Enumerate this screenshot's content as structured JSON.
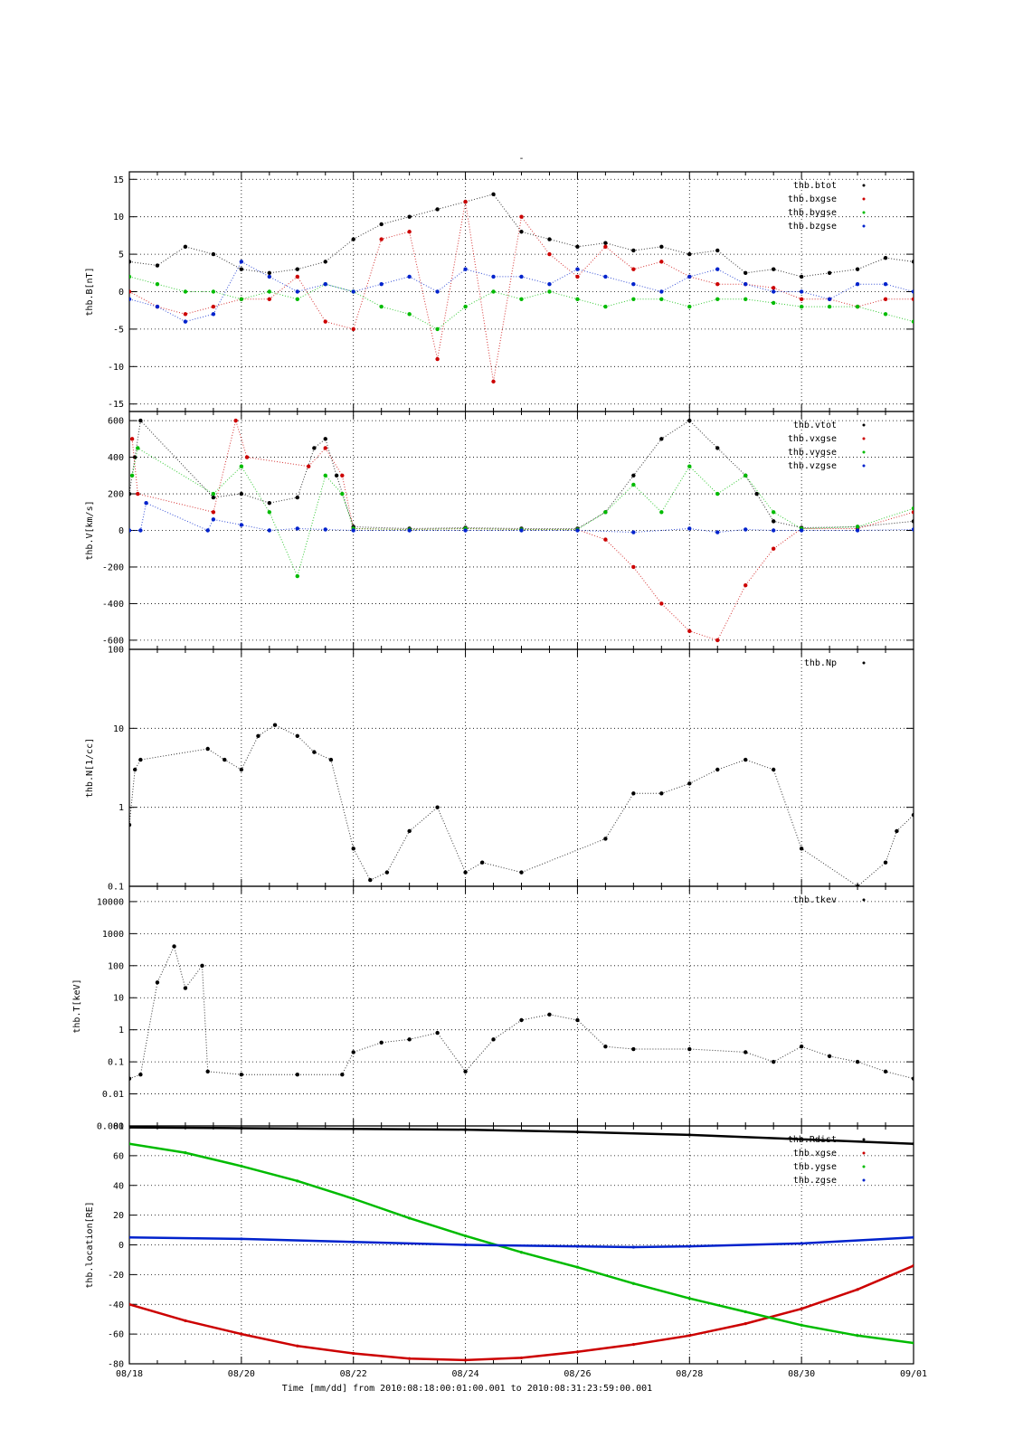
{
  "chart_data": [
    {
      "type": "scatter",
      "title": "-",
      "ylabel": "thb.B[nT]",
      "ylim": [
        -16,
        16
      ],
      "yticks": [
        15,
        10,
        5,
        0,
        -5,
        -10,
        -15
      ],
      "ytick_labels": [
        "15",
        "10",
        "5",
        "0",
        "-5",
        "-10",
        "-15"
      ],
      "series": [
        {
          "name": "thb.btot",
          "color": "#000000",
          "x": [
            0,
            0.5,
            1,
            1.5,
            2,
            2.5,
            3,
            3.5,
            4,
            4.5,
            5,
            5.5,
            6,
            6.5,
            7,
            7.5,
            8,
            8.5,
            9,
            9.5,
            10,
            10.5,
            11,
            11.5,
            12,
            12.5,
            13,
            13.5,
            14
          ],
          "y": [
            4,
            3.5,
            6,
            5,
            3,
            2.5,
            3,
            4,
            7,
            9,
            10,
            11,
            12,
            13,
            8,
            7,
            6,
            6.5,
            5.5,
            6,
            5,
            5.5,
            2.5,
            3,
            2,
            2.5,
            3,
            4.5,
            4
          ]
        },
        {
          "name": "thb.bxgse",
          "color": "#cc0000",
          "x": [
            0,
            0.5,
            1,
            1.5,
            2,
            2.5,
            3,
            3.5,
            4,
            4.5,
            5,
            5.5,
            6,
            6.5,
            7,
            7.5,
            8,
            8.5,
            9,
            9.5,
            10,
            10.5,
            11,
            11.5,
            12,
            12.5,
            13,
            13.5,
            14
          ],
          "y": [
            0,
            -2,
            -3,
            -2,
            -1,
            -1,
            2,
            -4,
            -5,
            7,
            8,
            -9,
            12,
            -12,
            10,
            5,
            2,
            6,
            3,
            4,
            2,
            1,
            1,
            0.5,
            -1,
            -1,
            -2,
            -1,
            -1
          ]
        },
        {
          "name": "thb.bygse",
          "color": "#00bb00",
          "x": [
            0,
            0.5,
            1,
            1.5,
            2,
            2.5,
            3,
            3.5,
            4,
            4.5,
            5,
            5.5,
            6,
            6.5,
            7,
            7.5,
            8,
            8.5,
            9,
            9.5,
            10,
            10.5,
            11,
            11.5,
            12,
            12.5,
            13,
            13.5,
            14
          ],
          "y": [
            2,
            1,
            0,
            0,
            -1,
            0,
            -1,
            1,
            0,
            -2,
            -3,
            -5,
            -2,
            0,
            -1,
            0,
            -1,
            -2,
            -1,
            -1,
            -2,
            -1,
            -1,
            -1.5,
            -2,
            -2,
            -2,
            -3,
            -4
          ]
        },
        {
          "name": "thb.bzgse",
          "color": "#0022cc",
          "x": [
            0,
            0.5,
            1,
            1.5,
            2,
            2.5,
            3,
            3.5,
            4,
            4.5,
            5,
            5.5,
            6,
            6.5,
            7,
            7.5,
            8,
            8.5,
            9,
            9.5,
            10,
            10.5,
            11,
            11.5,
            12,
            12.5,
            13,
            13.5,
            14
          ],
          "y": [
            -1,
            -2,
            -4,
            -3,
            4,
            2,
            0,
            1,
            0,
            1,
            2,
            0,
            3,
            2,
            2,
            1,
            3,
            2,
            1,
            0,
            2,
            3,
            1,
            0,
            0,
            -1,
            1,
            1,
            0
          ]
        }
      ]
    },
    {
      "type": "scatter",
      "ylabel": "thb.V[km/s]",
      "ylim": [
        -650,
        650
      ],
      "yticks": [
        600,
        400,
        200,
        0,
        -200,
        -400,
        -600
      ],
      "ytick_labels": [
        "600",
        "400",
        "200",
        "0",
        "-200",
        "-400",
        "-600"
      ],
      "series": [
        {
          "name": "thb.vtot",
          "color": "#000000",
          "x": [
            0,
            0.1,
            0.2,
            1.5,
            2,
            2.5,
            3,
            3.3,
            3.5,
            3.7,
            4,
            5,
            6,
            7,
            8,
            8.5,
            9,
            9.5,
            10,
            10.5,
            11,
            11.2,
            11.5,
            12,
            13,
            14
          ],
          "y": [
            200,
            400,
            600,
            180,
            200,
            150,
            180,
            450,
            500,
            300,
            20,
            10,
            15,
            10,
            10,
            100,
            300,
            500,
            600,
            450,
            300,
            200,
            50,
            15,
            20,
            50
          ]
        },
        {
          "name": "thb.vxgse",
          "color": "#cc0000",
          "x": [
            0.05,
            0.15,
            1.5,
            1.9,
            2.1,
            3.2,
            3.5,
            3.8,
            4,
            5,
            6,
            7,
            8,
            8.5,
            9,
            9.5,
            10,
            10.5,
            11,
            11.5,
            12,
            13,
            14
          ],
          "y": [
            500,
            200,
            100,
            600,
            400,
            350,
            450,
            300,
            10,
            5,
            10,
            5,
            5,
            -50,
            -200,
            -400,
            -550,
            -600,
            -300,
            -100,
            10,
            10,
            100
          ]
        },
        {
          "name": "thb.vygse",
          "color": "#00bb00",
          "x": [
            0.05,
            0.15,
            1.5,
            2,
            2.5,
            3,
            3.5,
            3.8,
            4,
            5,
            6,
            7,
            8,
            8.5,
            9,
            9.5,
            10,
            10.5,
            11,
            11.5,
            12,
            13,
            14
          ],
          "y": [
            300,
            450,
            200,
            350,
            100,
            -250,
            300,
            200,
            10,
            5,
            10,
            5,
            5,
            100,
            250,
            100,
            350,
            200,
            300,
            100,
            10,
            20,
            120
          ]
        },
        {
          "name": "thb.vzgse",
          "color": "#0022cc",
          "x": [
            0,
            0.2,
            0.3,
            1.4,
            1.5,
            2,
            2.5,
            3,
            3.5,
            4,
            5,
            6,
            7,
            8,
            9,
            10,
            10.5,
            11,
            11.5,
            12,
            13,
            14
          ],
          "y": [
            0,
            0,
            150,
            0,
            60,
            30,
            0,
            10,
            5,
            0,
            0,
            0,
            0,
            0,
            -10,
            10,
            -10,
            5,
            0,
            0,
            0,
            5
          ]
        }
      ]
    },
    {
      "type": "scatter",
      "ylabel": "thb.N[1/cc]",
      "yscale": "log",
      "ylim": [
        0.1,
        100
      ],
      "yticks": [
        100,
        10,
        1,
        0.1
      ],
      "ytick_labels": [
        "100",
        "10",
        "1",
        "0.1"
      ],
      "series": [
        {
          "name": "thb.Np",
          "color": "#000000",
          "x": [
            0,
            0.1,
            0.2,
            1.4,
            1.7,
            2,
            2.3,
            2.6,
            3,
            3.3,
            3.6,
            4,
            4.3,
            4.6,
            5,
            5.5,
            6,
            6.3,
            7,
            8.5,
            9,
            9.5,
            10,
            10.5,
            11,
            11.5,
            12,
            13,
            13.5,
            13.7,
            14
          ],
          "y": [
            0.6,
            3,
            4,
            5.5,
            4,
            3,
            8,
            11,
            8,
            5,
            4,
            0.3,
            0.12,
            0.15,
            0.5,
            1,
            0.15,
            0.2,
            0.15,
            0.4,
            1.5,
            1.5,
            2,
            3,
            4,
            3,
            0.3,
            0.1,
            0.2,
            0.5,
            0.8
          ]
        }
      ]
    },
    {
      "type": "scatter",
      "ylabel": "thb.T[keV]",
      "yscale": "log",
      "ylim": [
        0.001,
        30000
      ],
      "yticks": [
        10000,
        1000,
        100,
        10,
        1,
        0.1,
        0.01,
        0.001
      ],
      "ytick_labels": [
        "10000",
        "1000",
        "100",
        "10",
        "1",
        "0.1",
        "0.01",
        "0.001"
      ],
      "series": [
        {
          "name": "thb.tkev",
          "color": "#000000",
          "x": [
            0,
            0.2,
            0.5,
            0.8,
            1,
            1.3,
            1.4,
            2,
            3,
            3.8,
            4,
            4.5,
            5,
            5.5,
            6,
            6.5,
            7,
            7.5,
            8,
            8.5,
            9,
            10,
            11,
            11.5,
            12,
            12.5,
            13,
            13.5,
            14
          ],
          "y": [
            0.03,
            0.04,
            30,
            400,
            20,
            100,
            0.05,
            0.04,
            0.04,
            0.04,
            0.2,
            0.4,
            0.5,
            0.8,
            0.05,
            0.5,
            2,
            3,
            2,
            0.3,
            0.25,
            0.25,
            0.2,
            0.1,
            0.3,
            0.15,
            0.1,
            0.05,
            0.03
          ]
        }
      ]
    },
    {
      "type": "line",
      "ylabel": "thb.location[RE]",
      "ylim": [
        -80,
        80
      ],
      "yticks": [
        80,
        60,
        40,
        20,
        0,
        -20,
        -40,
        -60,
        -80
      ],
      "ytick_labels": [
        "80",
        "60",
        "40",
        "20",
        "0",
        "-20",
        "-40",
        "-60",
        "-80"
      ],
      "xlabel": "Time [mm/dd]  from 2010:08:18:00:01:00.001  to  2010:08:31:23:59:00.001",
      "xticks": [
        0,
        2,
        4,
        6,
        8,
        10,
        12,
        14
      ],
      "xtick_labels": [
        "08/18",
        "08/20",
        "08/22",
        "08/24",
        "08/26",
        "08/28",
        "08/30",
        "09/01"
      ],
      "series": [
        {
          "name": "thb.Rdist",
          "color": "#000000",
          "x": [
            0,
            2,
            4,
            6,
            8,
            10,
            12,
            14
          ],
          "y": [
            79,
            78.5,
            78,
            77.5,
            76,
            74,
            71,
            68
          ]
        },
        {
          "name": "thb.xgse",
          "color": "#cc0000",
          "x": [
            0,
            1,
            2,
            3,
            4,
            5,
            6,
            7,
            8,
            9,
            10,
            11,
            12,
            13,
            14
          ],
          "y": [
            -40,
            -51,
            -60,
            -68,
            -73,
            -76.5,
            -77.5,
            -76,
            -72,
            -67,
            -61,
            -53,
            -43,
            -30,
            -14
          ]
        },
        {
          "name": "thb.ygse",
          "color": "#00bb00",
          "x": [
            0,
            1,
            2,
            3,
            4,
            5,
            6,
            7,
            8,
            9,
            10,
            11,
            12,
            13,
            14
          ],
          "y": [
            68,
            62,
            53,
            43,
            31,
            18,
            6,
            -5,
            -15,
            -26,
            -36,
            -45,
            -54,
            -61,
            -66
          ]
        },
        {
          "name": "thb.zgse",
          "color": "#0022cc",
          "x": [
            0,
            2,
            4,
            6,
            8,
            9,
            10,
            12,
            14
          ],
          "y": [
            5,
            4,
            2,
            0,
            -1,
            -1.5,
            -1,
            1,
            5
          ]
        }
      ]
    }
  ]
}
